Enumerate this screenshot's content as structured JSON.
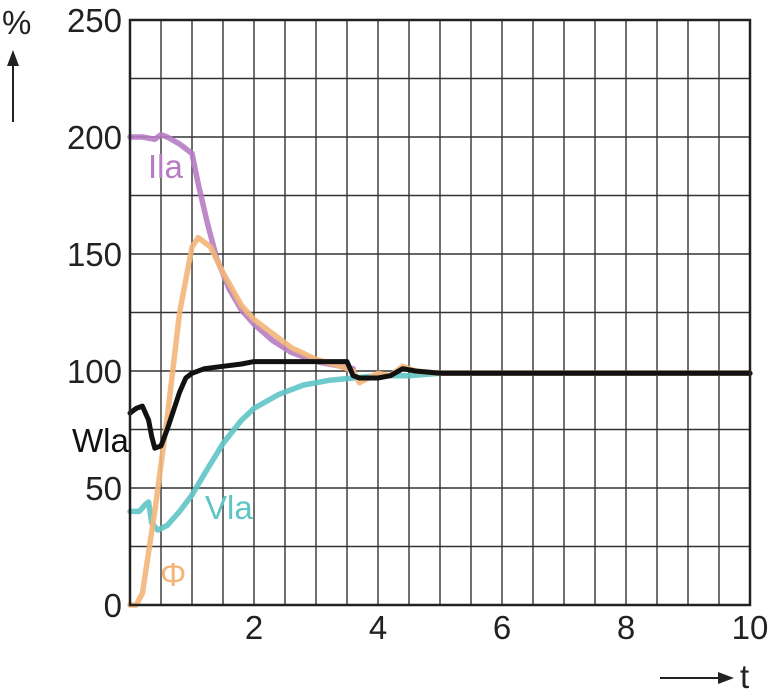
{
  "chart_data": {
    "type": "line",
    "xlabel": "t",
    "ylabel": "%",
    "xlim": [
      0,
      10
    ],
    "ylim": [
      0,
      250
    ],
    "x_ticks": [
      "2",
      "4",
      "6",
      "8",
      "10"
    ],
    "y_ticks": [
      "0",
      "50",
      "100",
      "150",
      "200",
      "250"
    ],
    "grid": true,
    "series": [
      {
        "name": "Ila",
        "color": "#b77cc3",
        "x": [
          0,
          0.2,
          0.4,
          0.5,
          0.6,
          0.8,
          1.0,
          1.1,
          1.25,
          1.4,
          1.6,
          1.8,
          2.0,
          2.3,
          2.6,
          3.0,
          3.4,
          3.6
        ],
        "y": [
          200,
          200,
          199,
          201,
          200,
          197,
          193,
          180,
          163,
          148,
          135,
          126,
          120,
          113,
          108,
          104,
          102,
          101
        ]
      },
      {
        "name": "Φ",
        "color": "#f3b67a",
        "x": [
          0,
          0.1,
          0.2,
          0.4,
          0.6,
          0.8,
          1.0,
          1.1,
          1.3,
          1.5,
          1.8,
          2.0,
          2.3,
          2.6,
          3.0,
          3.4,
          3.6,
          3.7,
          3.85,
          4.0,
          4.2,
          4.4,
          4.6,
          5.0,
          6.0,
          8.0,
          10.0
        ],
        "y": [
          0,
          0,
          5,
          40,
          80,
          125,
          153,
          157,
          153,
          142,
          128,
          122,
          116,
          110,
          105,
          102,
          100,
          95,
          97,
          99,
          98,
          102,
          100,
          99,
          99,
          99,
          99
        ]
      },
      {
        "name": "Wla",
        "color": "#111111",
        "x": [
          0,
          0.1,
          0.2,
          0.3,
          0.35,
          0.4,
          0.5,
          0.6,
          0.7,
          0.8,
          0.9,
          1.0,
          1.2,
          1.5,
          1.8,
          2.0,
          2.5,
          3.0,
          3.4,
          3.5,
          3.6,
          3.7,
          4.0,
          4.2,
          4.4,
          4.6,
          5.0,
          6.0,
          8.0,
          10.0
        ],
        "y": [
          82,
          84,
          85,
          79,
          72,
          67,
          68,
          75,
          83,
          91,
          97,
          99,
          101,
          102,
          103,
          104,
          104,
          104,
          104,
          104,
          98,
          97,
          97,
          98,
          101,
          100,
          99,
          99,
          99,
          99
        ]
      },
      {
        "name": "Vla",
        "color": "#5fc4c6",
        "x": [
          0,
          0.15,
          0.25,
          0.3,
          0.35,
          0.45,
          0.6,
          0.8,
          1.0,
          1.2,
          1.5,
          1.8,
          2.0,
          2.4,
          2.8,
          3.2,
          3.6,
          4.0,
          4.5,
          5.0,
          6.0,
          8.0,
          10.0
        ],
        "y": [
          40,
          40,
          43,
          44,
          35,
          32,
          34,
          40,
          47,
          56,
          69,
          79,
          84,
          90,
          94,
          96,
          97,
          98,
          98,
          99,
          99,
          99,
          99
        ]
      }
    ]
  }
}
